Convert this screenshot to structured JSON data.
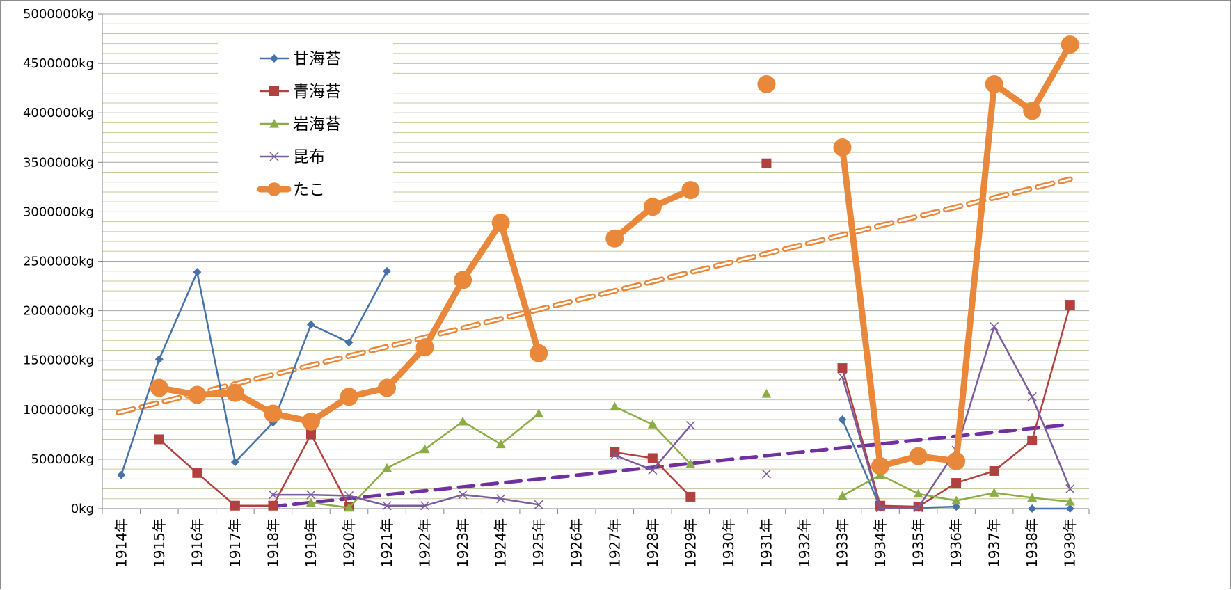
{
  "chart_data": {
    "type": "line",
    "title": "",
    "xlabel": "",
    "ylabel": "",
    "unit": "kg",
    "ylim": [
      0,
      5000000
    ],
    "ytick_step": 500000,
    "minor_gridline_step": 100000,
    "grid": true,
    "legend_position": "top-left (inside plot)",
    "categories": [
      "1914年",
      "1915年",
      "1916年",
      "1917年",
      "1918年",
      "1919年",
      "1920年",
      "1921年",
      "1922年",
      "1923年",
      "1924年",
      "1925年",
      "1926年",
      "1927年",
      "1928年",
      "1929年",
      "1930年",
      "1931年",
      "1932年",
      "1933年",
      "1934年",
      "1935年",
      "1936年",
      "1937年",
      "1938年",
      "1939年"
    ],
    "series": [
      {
        "name": "甘海苔",
        "color": "#4572a7",
        "marker": "diamond",
        "width": 2.5,
        "values": [
          340000,
          1510000,
          2390000,
          470000,
          870000,
          1860000,
          1680000,
          2400000,
          null,
          null,
          null,
          null,
          null,
          null,
          null,
          null,
          null,
          null,
          null,
          900000,
          10000,
          10000,
          20000,
          null,
          0,
          0
        ]
      },
      {
        "name": "青海苔",
        "color": "#b0413e",
        "marker": "square",
        "width": 2.5,
        "values": [
          null,
          700000,
          360000,
          30000,
          30000,
          750000,
          20000,
          null,
          null,
          null,
          null,
          null,
          null,
          570000,
          510000,
          120000,
          null,
          3490000,
          null,
          1420000,
          30000,
          20000,
          260000,
          380000,
          690000,
          2060000
        ]
      },
      {
        "name": "岩海苔",
        "color": "#8bad45",
        "marker": "triangle",
        "width": 2.5,
        "values": [
          null,
          null,
          null,
          null,
          null,
          60000,
          10000,
          410000,
          600000,
          880000,
          650000,
          960000,
          null,
          1030000,
          850000,
          450000,
          null,
          1160000,
          null,
          130000,
          340000,
          150000,
          80000,
          160000,
          110000,
          70000
        ]
      },
      {
        "name": "昆布",
        "color": "#7a5c9c",
        "marker": "x",
        "width": 2.5,
        "values": [
          null,
          null,
          null,
          null,
          140000,
          140000,
          130000,
          30000,
          30000,
          140000,
          100000,
          40000,
          null,
          540000,
          390000,
          840000,
          null,
          350000,
          null,
          1330000,
          10000,
          10000,
          590000,
          1840000,
          1130000,
          200000
        ]
      },
      {
        "name": "たこ",
        "color": "#e9873a",
        "marker": "circle",
        "width": 9,
        "values": [
          null,
          1220000,
          1150000,
          1170000,
          960000,
          880000,
          1130000,
          1220000,
          1630000,
          2310000,
          2890000,
          1570000,
          null,
          2730000,
          3050000,
          3220000,
          null,
          4290000,
          null,
          3650000,
          430000,
          530000,
          480000,
          4290000,
          4020000,
          4690000
        ]
      }
    ],
    "trendlines": [
      {
        "color": "#e9873a",
        "style": "dashed-outline",
        "from_category": "1914年",
        "to_category": "1939年",
        "from_value": 970000,
        "to_value": 3330000
      },
      {
        "color": "#7030a0",
        "style": "dashed",
        "from_category": "1918年",
        "to_category": "1939年",
        "from_value": 20000,
        "to_value": 850000
      }
    ]
  }
}
